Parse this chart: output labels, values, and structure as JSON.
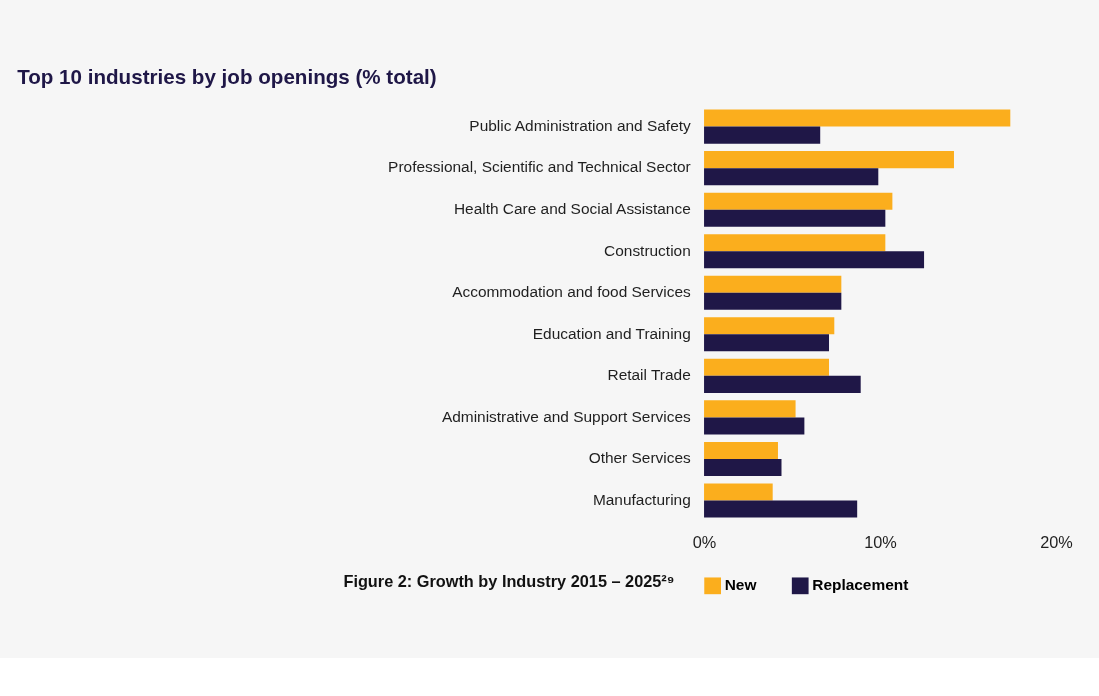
{
  "chart_data": {
    "type": "bar",
    "orientation": "horizontal",
    "title": "Top 10 industries by job openings (% total)",
    "categories": [
      "Public  Administration and Safety",
      "Professional, Scientific and Technical Sector",
      "Health Care and Social Assistance",
      "Construction",
      "Accommodation and food Services",
      "Education and Training",
      "Retail Trade",
      "Administrative and Support Services",
      "Other Services",
      "Manufacturing"
    ],
    "series": [
      {
        "name": "New",
        "color": "#fbae1d",
        "values": [
          17.4,
          14.2,
          10.7,
          10.3,
          7.8,
          7.4,
          7.1,
          5.2,
          4.2,
          3.9
        ]
      },
      {
        "name": "Replacement",
        "color": "#1f1747",
        "values": [
          6.6,
          9.9,
          10.3,
          12.5,
          7.8,
          7.1,
          8.9,
          5.7,
          4.4,
          8.7
        ]
      }
    ],
    "xlim": [
      0,
      20
    ],
    "xticks": [
      {
        "value": 0,
        "label": "0%"
      },
      {
        "value": 10,
        "label": "10%"
      },
      {
        "value": 20,
        "label": "20%"
      }
    ],
    "grid": false,
    "legend": "bottom",
    "annotations": [
      "Figure 2: Growth by Industry 2015 – 2025²⁹"
    ]
  }
}
